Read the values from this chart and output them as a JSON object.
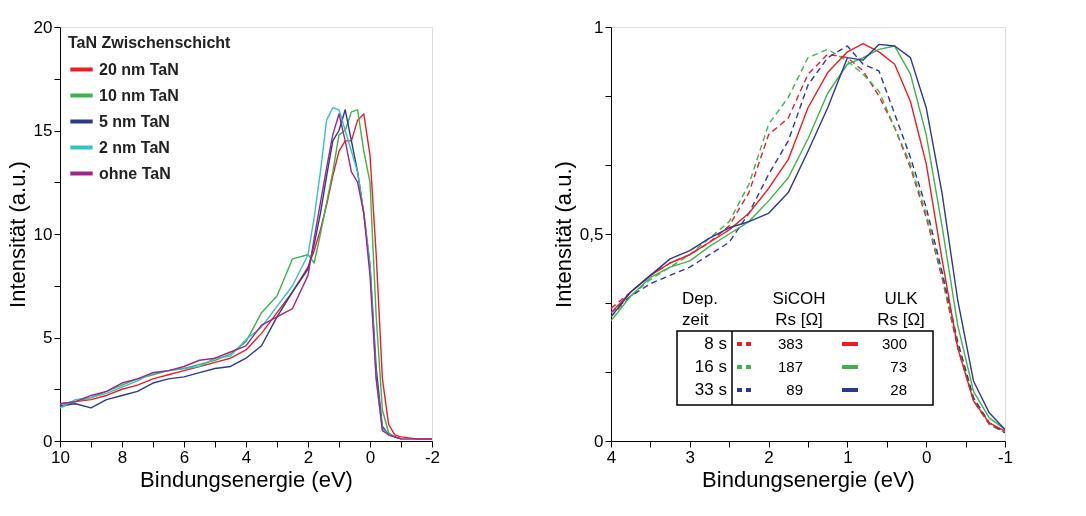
{
  "chart_data": [
    {
      "type": "line",
      "xlabel": "Bindungsenergie (eV)",
      "ylabel": "Intensität (a.u.)",
      "legend_title": "TaN Zwischenschicht",
      "legend": "top left",
      "grid": false,
      "line_style": "solid",
      "xlim": [
        10,
        -2
      ],
      "ylim": [
        0,
        20
      ],
      "xticks": [
        10,
        {
          "value": 9,
          "label": null
        },
        8,
        {
          "value": 7,
          "label": null
        },
        6,
        {
          "value": 5,
          "label": null
        },
        4,
        {
          "value": 3,
          "label": null
        },
        2,
        {
          "value": 1,
          "label": null
        },
        0,
        {
          "value": -1,
          "label": null
        },
        -2
      ],
      "yticks": [
        0,
        {
          "value": 2.5,
          "label": null
        },
        5,
        {
          "value": 7.5,
          "label": null
        },
        10,
        {
          "value": 12.5,
          "label": null
        },
        15,
        {
          "value": 17.5,
          "label": null
        },
        20
      ],
      "x": [
        10,
        9.5,
        9,
        8.5,
        8,
        7.5,
        7,
        6.5,
        6,
        5.5,
        5,
        4.5,
        4,
        3.5,
        3,
        2.5,
        2,
        1.8,
        1.6,
        1.4,
        1.2,
        1,
        0.8,
        0.6,
        0.4,
        0.2,
        0,
        -0.2,
        -0.4,
        -0.6,
        -0.8,
        -1,
        -1.5,
        -2
      ],
      "series": [
        {
          "name": "20 nm TaN",
          "color": "#ee1c24",
          "values": [
            1.8,
            1.9,
            2.0,
            2.2,
            2.5,
            2.7,
            3.0,
            3.2,
            3.4,
            3.6,
            3.8,
            4.0,
            4.4,
            5.2,
            6.2,
            7.2,
            8.4,
            9.2,
            10.2,
            11.4,
            12.8,
            14.0,
            14.5,
            14.5,
            15.5,
            15.8,
            13.8,
            9.0,
            3.0,
            0.8,
            0.3,
            0.2,
            0.1,
            0.1
          ]
        },
        {
          "name": "10 nm TaN",
          "color": "#3cb44a",
          "values": [
            1.6,
            1.9,
            2.1,
            2.4,
            2.7,
            3.0,
            3.2,
            3.4,
            3.5,
            3.7,
            3.9,
            4.2,
            4.8,
            6.2,
            7.0,
            8.8,
            9.0,
            8.6,
            10.0,
            11.5,
            13.0,
            14.8,
            15.0,
            15.9,
            16.0,
            14.0,
            12.5,
            6.0,
            1.5,
            0.4,
            0.2,
            0.1,
            null,
            null
          ]
        },
        {
          "name": "5 nm TaN",
          "color": "#2b3990",
          "values": [
            1.7,
            1.8,
            1.6,
            2.0,
            2.2,
            2.4,
            2.8,
            3.0,
            3.1,
            3.3,
            3.5,
            3.6,
            4.0,
            4.6,
            6.0,
            7.2,
            8.3,
            9.5,
            11.0,
            12.8,
            14.5,
            15.0,
            16.0,
            14.5,
            13.0,
            11.0,
            8.5,
            3.5,
            0.7,
            0.3,
            0.2,
            0.1,
            null,
            null
          ]
        },
        {
          "name": "2 nm TaN",
          "color": "#2ec4c4",
          "values": [
            1.6,
            2.0,
            2.1,
            2.3,
            2.6,
            2.9,
            3.3,
            3.4,
            3.5,
            3.6,
            4.0,
            4.1,
            4.9,
            5.5,
            6.5,
            7.5,
            9.0,
            10.8,
            13.0,
            15.5,
            16.1,
            16.0,
            15.0,
            14.0,
            13.0,
            11.0,
            8.5,
            3.0,
            0.6,
            0.3,
            0.2,
            null,
            null,
            null
          ]
        },
        {
          "name": "ohne TaN",
          "color": "#a3238e",
          "values": [
            1.8,
            1.9,
            2.2,
            2.4,
            2.8,
            3.0,
            3.3,
            3.4,
            3.6,
            3.9,
            4.0,
            4.3,
            4.6,
            5.6,
            6.0,
            6.4,
            8.0,
            9.8,
            11.5,
            13.2,
            14.8,
            15.8,
            14.5,
            13.0,
            12.5,
            11.0,
            8.0,
            3.0,
            0.5,
            0.3,
            0.2,
            0.1,
            0.1,
            0.1
          ]
        }
      ]
    },
    {
      "type": "line",
      "xlabel": "Bindungsenergie (eV)",
      "ylabel": "Intensität (a.u.)",
      "legend": "bottom",
      "grid": false,
      "annotations": [
        "Dep.\nzeit",
        "SiCOH\nRs [Ω]",
        "ULK\nRs [Ω]",
        "8 s",
        "16 s",
        "33 s"
      ],
      "xlim": [
        4,
        -1
      ],
      "ylim": [
        0,
        1
      ],
      "xticks": [
        4,
        {
          "value": 3.5,
          "label": null
        },
        3,
        {
          "value": 2.5,
          "label": null
        },
        2,
        {
          "value": 1.5,
          "label": null
        },
        1,
        {
          "value": 0.5,
          "label": null
        },
        0,
        {
          "value": -0.5,
          "label": null
        },
        -1
      ],
      "yticks": [
        0,
        {
          "value": 0.167,
          "label": null
        },
        {
          "value": 0.333,
          "label": null
        },
        {
          "value": 0.5,
          "label": "0,5"
        },
        {
          "value": 0.667,
          "label": null
        },
        {
          "value": 0.833,
          "label": null
        },
        1
      ],
      "x": [
        4,
        3.75,
        3.5,
        3.25,
        3,
        2.75,
        2.5,
        2.25,
        2,
        1.75,
        1.5,
        1.25,
        1,
        0.8,
        0.6,
        0.4,
        0.2,
        0,
        -0.2,
        -0.4,
        -0.6,
        -0.8,
        -1
      ],
      "series": [
        {
          "name": "383",
          "color": "#ee1c24",
          "line_style": "dashed",
          "values": [
            0.32,
            0.36,
            0.4,
            0.43,
            0.45,
            0.48,
            0.52,
            0.6,
            0.74,
            0.78,
            0.886,
            0.934,
            0.926,
            0.894,
            0.833,
            0.757,
            0.66,
            0.54,
            0.395,
            0.225,
            0.097,
            0.04,
            0.02
          ]
        },
        {
          "name": "187",
          "color": "#3cb44a",
          "line_style": "dashed",
          "values": [
            0.3,
            0.35,
            0.39,
            0.42,
            0.45,
            0.49,
            0.53,
            0.62,
            0.765,
            0.83,
            0.926,
            0.946,
            0.918,
            0.886,
            0.845,
            0.757,
            0.668,
            0.548,
            0.4,
            0.233,
            0.1,
            0.042,
            0.02
          ]
        },
        {
          "name": "89",
          "color": "#2b3990",
          "line_style": "dashed",
          "values": [
            0.31,
            0.35,
            0.38,
            0.4,
            0.42,
            0.45,
            0.48,
            0.55,
            0.644,
            0.725,
            0.86,
            0.926,
            0.954,
            0.91,
            0.894,
            0.79,
            0.685,
            0.564,
            0.41,
            0.24,
            0.105,
            0.044,
            0.02
          ]
        },
        {
          "name": "300",
          "color": "#ee1c24",
          "line_style": "solid",
          "values": [
            0.31,
            0.36,
            0.4,
            0.43,
            0.45,
            0.48,
            0.51,
            0.55,
            0.61,
            0.68,
            0.805,
            0.89,
            0.94,
            0.96,
            0.94,
            0.91,
            0.82,
            0.67,
            0.44,
            0.225,
            0.097,
            0.044,
            0.024
          ]
        },
        {
          "name": "73",
          "color": "#3cb44a",
          "line_style": "solid",
          "values": [
            0.29,
            0.35,
            0.395,
            0.42,
            0.435,
            0.47,
            0.5,
            0.53,
            0.58,
            0.636,
            0.73,
            0.84,
            0.91,
            0.926,
            0.946,
            0.954,
            0.886,
            0.74,
            0.52,
            0.28,
            0.12,
            0.056,
            0.028
          ]
        },
        {
          "name": "28",
          "color": "#2b3990",
          "line_style": "solid",
          "values": [
            0.3,
            0.36,
            0.4,
            0.44,
            0.46,
            0.49,
            0.515,
            0.53,
            0.55,
            0.6,
            0.7,
            0.805,
            0.926,
            0.92,
            0.958,
            0.954,
            0.926,
            0.805,
            0.6,
            0.34,
            0.145,
            0.068,
            0.028
          ]
        }
      ]
    }
  ]
}
